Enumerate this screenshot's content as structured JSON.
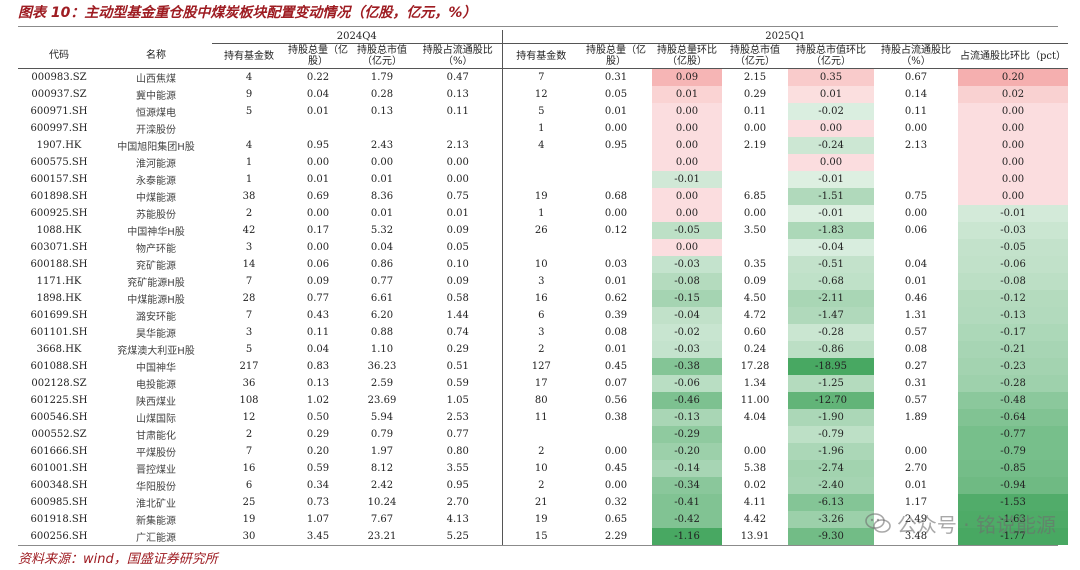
{
  "title": "图表 10：主动型基金重仓股中煤炭板块配置变动情况（亿股，亿元，%）",
  "source": "资料来源：wind，国盛证券研究所",
  "watermark": "公众号 · 铭说能源",
  "colors": {
    "title": "#9e1c22",
    "positive_strong": "#ea5a5a",
    "negative_strong": "#4aa862"
  },
  "table": {
    "groups": {
      "q4": "2024Q4",
      "q1": "2025Q1"
    },
    "headers": [
      "代码",
      "名称",
      "持有基金数",
      "持股总量（亿股）",
      "持股总市值（亿元）",
      "持股占流通股比（%）",
      "持有基金数",
      "持股总量（亿股）",
      "持股总量环比（亿股）",
      "持股总市值（亿元）",
      "持股总市值环比（亿元）",
      "持股占流通股比（%）",
      "占流通股比环比（pct）"
    ],
    "rows": [
      [
        "000983.SZ",
        "山西焦煤",
        "4",
        "0.22",
        "1.79",
        "0.47",
        "7",
        "0.31",
        "0.09",
        "2.15",
        "0.35",
        "0.67",
        "0.20"
      ],
      [
        "000937.SZ",
        "冀中能源",
        "9",
        "0.04",
        "0.28",
        "0.13",
        "12",
        "0.05",
        "0.01",
        "0.29",
        "0.01",
        "0.14",
        "0.02"
      ],
      [
        "600971.SH",
        "恒源煤电",
        "5",
        "0.01",
        "0.13",
        "0.11",
        "5",
        "0.01",
        "0.00",
        "0.11",
        "-0.02",
        "0.11",
        "0.00"
      ],
      [
        "600997.SH",
        "开滦股份",
        "",
        "",
        "",
        "",
        "1",
        "0.00",
        "0.00",
        "0.00",
        "0.00",
        "0.00",
        "0.00"
      ],
      [
        "1907.HK",
        "中国旭阳集团H股",
        "4",
        "0.95",
        "2.43",
        "2.13",
        "4",
        "0.95",
        "0.00",
        "2.19",
        "-0.24",
        "2.13",
        "0.00"
      ],
      [
        "600575.SH",
        "淮河能源",
        "1",
        "0.00",
        "0.00",
        "0.00",
        "",
        "",
        "0.00",
        "",
        "0.00",
        "",
        "0.00"
      ],
      [
        "600157.SH",
        "永泰能源",
        "1",
        "0.01",
        "0.01",
        "0.00",
        "",
        "",
        "-0.01",
        "",
        "-0.01",
        "",
        "0.00"
      ],
      [
        "601898.SH",
        "中煤能源",
        "38",
        "0.69",
        "8.36",
        "0.75",
        "19",
        "0.68",
        "0.00",
        "6.85",
        "-1.51",
        "0.75",
        "0.00"
      ],
      [
        "600925.SH",
        "苏能股份",
        "2",
        "0.00",
        "0.01",
        "0.01",
        "1",
        "0.00",
        "0.00",
        "0.00",
        "-0.01",
        "0.00",
        "-0.01"
      ],
      [
        "1088.HK",
        "中国神华H股",
        "42",
        "0.17",
        "5.32",
        "0.09",
        "26",
        "0.12",
        "-0.05",
        "3.50",
        "-1.83",
        "0.06",
        "-0.03"
      ],
      [
        "603071.SH",
        "物产环能",
        "3",
        "0.00",
        "0.04",
        "0.05",
        "",
        "",
        "0.00",
        "",
        "-0.04",
        "",
        "-0.05"
      ],
      [
        "600188.SH",
        "兖矿能源",
        "14",
        "0.06",
        "0.86",
        "0.10",
        "10",
        "0.03",
        "-0.03",
        "0.35",
        "-0.51",
        "0.04",
        "-0.06"
      ],
      [
        "1171.HK",
        "兖矿能源H股",
        "7",
        "0.09",
        "0.77",
        "0.09",
        "3",
        "0.01",
        "-0.08",
        "0.09",
        "-0.68",
        "0.01",
        "-0.08"
      ],
      [
        "1898.HK",
        "中煤能源H股",
        "28",
        "0.77",
        "6.61",
        "0.58",
        "16",
        "0.62",
        "-0.15",
        "4.50",
        "-2.11",
        "0.46",
        "-0.12"
      ],
      [
        "601699.SH",
        "潞安环能",
        "7",
        "0.43",
        "6.20",
        "1.44",
        "6",
        "0.39",
        "-0.04",
        "4.72",
        "-1.47",
        "1.31",
        "-0.13"
      ],
      [
        "601101.SH",
        "昊华能源",
        "3",
        "0.11",
        "0.88",
        "0.74",
        "3",
        "0.08",
        "-0.02",
        "0.60",
        "-0.28",
        "0.57",
        "-0.17"
      ],
      [
        "3668.HK",
        "兖煤澳大利亚H股",
        "5",
        "0.04",
        "1.10",
        "0.29",
        "2",
        "0.01",
        "-0.03",
        "0.24",
        "-0.86",
        "0.08",
        "-0.21"
      ],
      [
        "601088.SH",
        "中国神华",
        "217",
        "0.83",
        "36.23",
        "0.51",
        "127",
        "0.45",
        "-0.38",
        "17.28",
        "-18.95",
        "0.27",
        "-0.23"
      ],
      [
        "002128.SZ",
        "电投能源",
        "36",
        "0.13",
        "2.59",
        "0.59",
        "17",
        "0.07",
        "-0.06",
        "1.34",
        "-1.25",
        "0.31",
        "-0.28"
      ],
      [
        "601225.SH",
        "陕西煤业",
        "108",
        "1.02",
        "23.69",
        "1.05",
        "80",
        "0.56",
        "-0.46",
        "11.00",
        "-12.70",
        "0.57",
        "-0.48"
      ],
      [
        "600546.SH",
        "山煤国际",
        "12",
        "0.50",
        "5.94",
        "2.53",
        "11",
        "0.38",
        "-0.13",
        "4.04",
        "-1.90",
        "1.89",
        "-0.64"
      ],
      [
        "000552.SZ",
        "甘肃能化",
        "2",
        "0.29",
        "0.79",
        "0.77",
        "",
        "",
        "-0.29",
        "",
        "-0.79",
        "",
        "-0.77"
      ],
      [
        "601666.SH",
        "平煤股份",
        "7",
        "0.20",
        "1.97",
        "0.80",
        "2",
        "0.00",
        "-0.20",
        "0.00",
        "-1.96",
        "0.00",
        "-0.79"
      ],
      [
        "601001.SH",
        "晋控煤业",
        "16",
        "0.59",
        "8.12",
        "3.55",
        "10",
        "0.45",
        "-0.14",
        "5.38",
        "-2.74",
        "2.70",
        "-0.85"
      ],
      [
        "600348.SH",
        "华阳股份",
        "6",
        "0.34",
        "2.42",
        "0.95",
        "2",
        "0.00",
        "-0.34",
        "0.02",
        "-2.40",
        "0.01",
        "-0.94"
      ],
      [
        "600985.SH",
        "淮北矿业",
        "25",
        "0.73",
        "10.24",
        "2.70",
        "21",
        "0.32",
        "-0.41",
        "4.11",
        "-6.13",
        "1.17",
        "-1.53"
      ],
      [
        "601918.SH",
        "新集能源",
        "19",
        "1.07",
        "7.67",
        "4.13",
        "19",
        "0.65",
        "-0.42",
        "4.42",
        "-3.26",
        "2.49",
        "-1.63"
      ],
      [
        "600256.SH",
        "广汇能源",
        "30",
        "3.45",
        "23.21",
        "5.25",
        "15",
        "2.29",
        "-1.16",
        "13.91",
        "-9.30",
        "3.48",
        "-1.77"
      ]
    ]
  }
}
